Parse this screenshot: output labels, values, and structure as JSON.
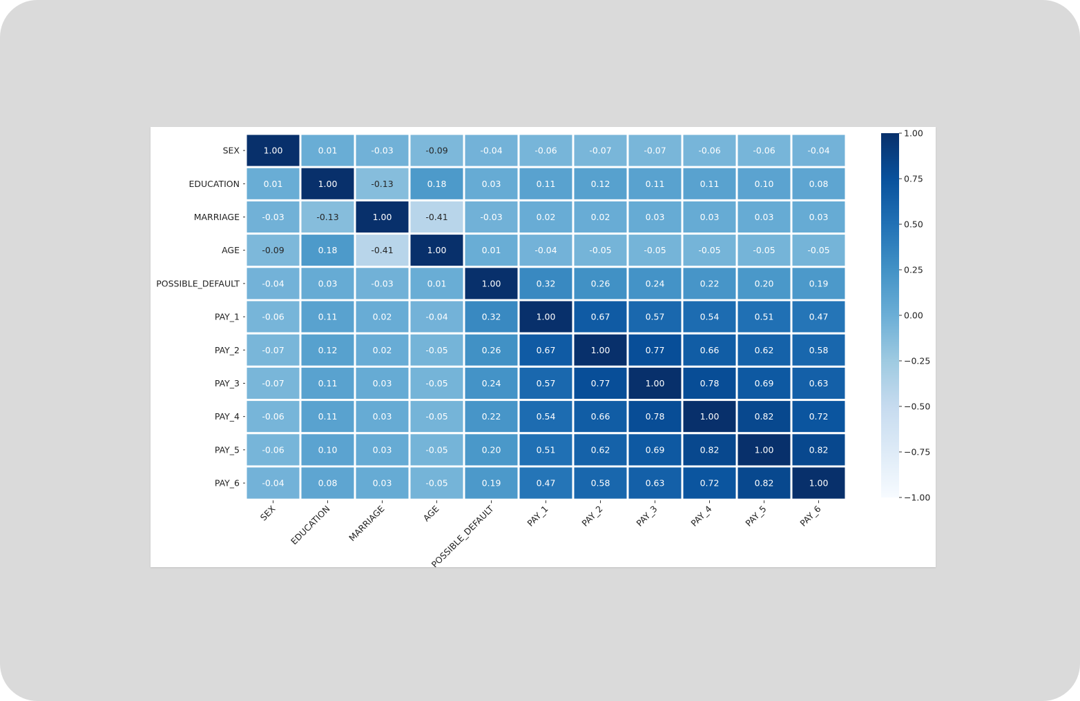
{
  "chart_data": {
    "type": "heatmap",
    "variables": [
      "SEX",
      "EDUCATION",
      "MARRIAGE",
      "AGE",
      "POSSIBLE_DEFAULT",
      "PAY_1",
      "PAY_2",
      "PAY_3",
      "PAY_4",
      "PAY_5",
      "PAY_6"
    ],
    "value_labels": [
      [
        "1.00",
        "0.01",
        "-0.03",
        "-0.09",
        "-0.04",
        "-0.06",
        "-0.07",
        "-0.07",
        "-0.06",
        "-0.06",
        "-0.04"
      ],
      [
        "0.01",
        "1.00",
        "-0.13",
        "0.18",
        "0.03",
        "0.11",
        "0.12",
        "0.11",
        "0.11",
        "0.10",
        "0.08"
      ],
      [
        "-0.03",
        "-0.13",
        "1.00",
        "-0.41",
        "-0.03",
        "0.02",
        "0.02",
        "0.03",
        "0.03",
        "0.03",
        "0.03"
      ],
      [
        "-0.09",
        "0.18",
        "-0.41",
        "1.00",
        "0.01",
        "-0.04",
        "-0.05",
        "-0.05",
        "-0.05",
        "-0.05",
        "-0.05"
      ],
      [
        "-0.04",
        "0.03",
        "-0.03",
        "0.01",
        "1.00",
        "0.32",
        "0.26",
        "0.24",
        "0.22",
        "0.20",
        "0.19"
      ],
      [
        "-0.06",
        "0.11",
        "0.02",
        "-0.04",
        "0.32",
        "1.00",
        "0.67",
        "0.57",
        "0.54",
        "0.51",
        "0.47"
      ],
      [
        "-0.07",
        "0.12",
        "0.02",
        "-0.05",
        "0.26",
        "0.67",
        "1.00",
        "0.77",
        "0.66",
        "0.62",
        "0.58"
      ],
      [
        "-0.07",
        "0.11",
        "0.03",
        "-0.05",
        "0.24",
        "0.57",
        "0.77",
        "1.00",
        "0.78",
        "0.69",
        "0.63"
      ],
      [
        "-0.06",
        "0.11",
        "0.03",
        "-0.05",
        "0.22",
        "0.54",
        "0.66",
        "0.78",
        "1.00",
        "0.82",
        "0.72"
      ],
      [
        "-0.06",
        "0.10",
        "0.03",
        "-0.05",
        "0.20",
        "0.51",
        "0.62",
        "0.69",
        "0.82",
        "1.00",
        "0.82"
      ],
      [
        "-0.04",
        "0.08",
        "0.03",
        "-0.05",
        "0.19",
        "0.47",
        "0.58",
        "0.63",
        "0.72",
        "0.82",
        "1.00"
      ]
    ],
    "vmin": -1.0,
    "vmax": 1.0,
    "colormap": "Blues",
    "colorbar_ticks": [
      "1.00",
      "0.75",
      "0.50",
      "0.25",
      "0.00",
      "−0.25",
      "−0.50",
      "−0.75",
      "−1.00"
    ],
    "colorbar_tick_values": [
      1.0,
      0.75,
      0.5,
      0.25,
      0.0,
      -0.25,
      -0.5,
      -0.75,
      -1.0
    ],
    "grid": true,
    "legend": "colorbar right"
  },
  "colors": {
    "frame_background": "#dadada",
    "figure_background": "#ffffff",
    "cell_separator": "#ffffff",
    "colormap_stops": [
      "#f7fbff",
      "#deebf7",
      "#c6dbef",
      "#9ecae1",
      "#6baed6",
      "#4292c6",
      "#2171b5",
      "#08519c",
      "#08306b"
    ]
  }
}
